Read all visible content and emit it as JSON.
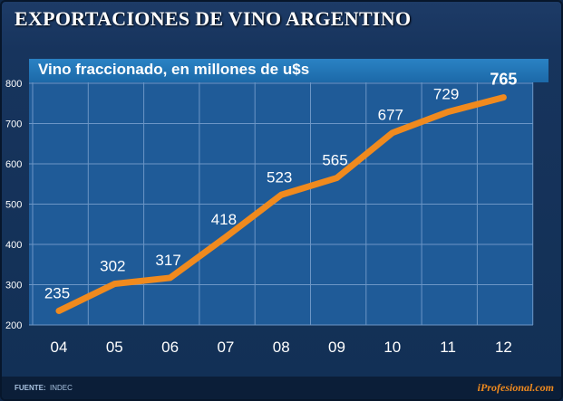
{
  "header": {
    "title": "EXPORTACIONES DE VINO ARGENTINO"
  },
  "chart_data": {
    "type": "line",
    "title": "EXPORTACIONES DE VINO ARGENTINO",
    "subtitle": "Vino fraccionado, en millones de u$s",
    "categories": [
      "04",
      "05",
      "06",
      "07",
      "08",
      "09",
      "10",
      "11",
      "12"
    ],
    "values": [
      235,
      302,
      317,
      418,
      523,
      565,
      677,
      729,
      765
    ],
    "data_labels": [
      "235",
      "302",
      "317",
      "418",
      "523",
      "565",
      "677",
      "729",
      "765"
    ],
    "y_ticks": [
      "200",
      "300",
      "400",
      "500",
      "600",
      "700",
      "800"
    ],
    "ylim": [
      200,
      800
    ],
    "xlabel": "",
    "ylabel": "",
    "grid": true,
    "highlight_last": true,
    "line_color": "#f08a1e",
    "plot_color": "#1f5b98",
    "grid_color": "#6c96c6"
  },
  "footer": {
    "source_label": "FUENTE:",
    "source_value": "INDEC",
    "brand": "iProfesional.com"
  }
}
